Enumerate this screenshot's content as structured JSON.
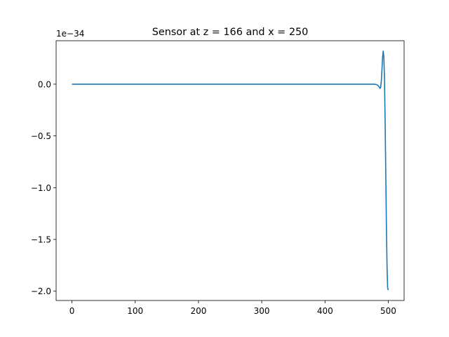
{
  "chart_data": {
    "type": "line",
    "title": "Sensor at z = 166 and x = 250",
    "xlabel": "",
    "ylabel": "",
    "offset_label": "1e−34",
    "xlim": [
      -25,
      525
    ],
    "ylim": [
      -2.09,
      0.42
    ],
    "x_ticks": [
      0,
      100,
      200,
      300,
      400,
      500
    ],
    "x_tick_labels": [
      "0",
      "100",
      "200",
      "300",
      "400",
      "500"
    ],
    "y_ticks": [
      0.0,
      -0.5,
      -1.0,
      -1.5,
      -2.0
    ],
    "y_tick_labels": [
      "0.0",
      "−0.5",
      "−1.0",
      "−1.5",
      "−2.0"
    ],
    "grid": false,
    "series": [
      {
        "color": "#1f77b4",
        "x": [
          0,
          100,
          200,
          300,
          400,
          470,
          478,
          482,
          485,
          487,
          488,
          489,
          490,
          491,
          492,
          493,
          494,
          495,
          496,
          497,
          498,
          499,
          500
        ],
        "y": [
          0,
          0,
          0,
          0,
          0,
          0,
          0,
          -0.005,
          -0.02,
          -0.04,
          -0.03,
          0.03,
          0.14,
          0.26,
          0.32,
          0.26,
          0.05,
          -0.35,
          -0.85,
          -1.35,
          -1.75,
          -1.97,
          -1.99
        ]
      }
    ]
  }
}
